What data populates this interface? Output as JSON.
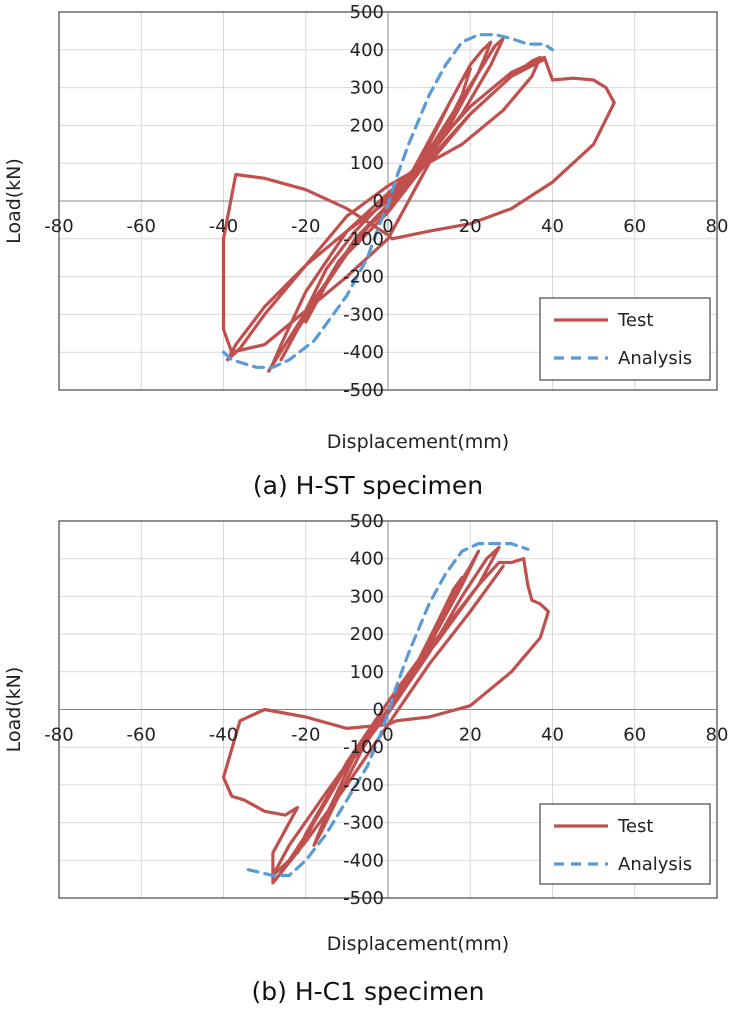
{
  "colors": {
    "test": "#c0504d",
    "analysis": "#5b9bd5",
    "grid": "#d9d9d9",
    "frame": "#222222"
  },
  "chart_data": [
    {
      "type": "line",
      "caption": "(a) H-ST specimen",
      "xlabel": "Displacement(mm)",
      "ylabel": "Load(kN)",
      "xlim": [
        -80,
        80
      ],
      "ylim": [
        -500,
        500
      ],
      "x_ticks": [
        "-80",
        "-60",
        "-40",
        "-20",
        "0",
        "20",
        "40",
        "60",
        "80"
      ],
      "y_ticks": [
        "500",
        "400",
        "300",
        "200",
        "100",
        "0",
        "-100",
        "-200",
        "-300",
        "-400",
        "-500"
      ],
      "legend": [
        "Test",
        "Analysis"
      ],
      "legend_position": "bottom-right",
      "grid": true,
      "series": [
        {
          "name": "Test",
          "x": [
            0,
            5,
            10,
            15,
            18,
            20,
            18,
            12,
            5,
            0,
            -5,
            -10,
            -15,
            -18,
            -20,
            -18,
            -12,
            -5,
            0,
            5,
            10,
            15,
            20,
            23,
            25,
            22,
            15,
            8,
            0,
            -8,
            -15,
            -20,
            -24,
            -26,
            -22,
            -15,
            -8,
            0,
            8,
            15,
            22,
            26,
            28,
            25,
            18,
            10,
            0,
            -10,
            -20,
            -26,
            -28,
            -29,
            -25,
            -18,
            -10,
            0,
            10,
            20,
            30,
            35,
            37,
            35,
            28,
            18,
            8,
            0,
            -10,
            -20,
            -30,
            -36,
            -39,
            -37,
            -30,
            -20,
            -10,
            0,
            10,
            20,
            30,
            36,
            38,
            40,
            45,
            50,
            53,
            55,
            50,
            40,
            30,
            20,
            10,
            1,
            0,
            -10,
            -20,
            -30,
            -37,
            -40,
            -40,
            -38,
            -30,
            -20,
            -10,
            0,
            10,
            20,
            30,
            38
          ],
          "y": [
            0,
            60,
            160,
            260,
            320,
            350,
            280,
            150,
            40,
            -20,
            -70,
            -140,
            -220,
            -280,
            -320,
            -270,
            -160,
            -70,
            -20,
            50,
            150,
            260,
            360,
            400,
            420,
            340,
            200,
            90,
            10,
            -80,
            -180,
            -290,
            -380,
            -420,
            -340,
            -220,
            -100,
            -10,
            100,
            220,
            340,
            410,
            430,
            360,
            230,
            120,
            20,
            -80,
            -240,
            -380,
            -430,
            -450,
            -380,
            -260,
            -140,
            -30,
            110,
            230,
            330,
            370,
            380,
            330,
            240,
            150,
            90,
            40,
            -40,
            -170,
            -300,
            -390,
            -420,
            -380,
            -280,
            -170,
            -80,
            0,
            130,
            250,
            340,
            370,
            380,
            320,
            325,
            320,
            300,
            260,
            150,
            50,
            -20,
            -60,
            -80,
            -100,
            -90,
            -20,
            30,
            60,
            70,
            -100,
            -340,
            -400,
            -380,
            -290,
            -200,
            -100,
            100,
            230,
            330,
            375
          ]
        },
        {
          "name": "Analysis",
          "x": [
            -40,
            -38,
            -32,
            -28,
            -24,
            -18,
            -10,
            -5,
            -2,
            0,
            2,
            5,
            10,
            14,
            18,
            22,
            26,
            30,
            34,
            38,
            40
          ],
          "y": [
            -400,
            -420,
            -440,
            -440,
            -420,
            -370,
            -250,
            -150,
            -60,
            -10,
            60,
            150,
            280,
            360,
            420,
            440,
            440,
            430,
            415,
            415,
            400
          ]
        }
      ]
    },
    {
      "type": "line",
      "caption": "(b) H-C1 specimen",
      "xlabel": "Displacement(mm)",
      "ylabel": "Load(kN)",
      "xlim": [
        -80,
        80
      ],
      "ylim": [
        -500,
        500
      ],
      "x_ticks": [
        "-80",
        "-60",
        "-40",
        "-20",
        "0",
        "20",
        "40",
        "60",
        "80"
      ],
      "y_ticks": [
        "500",
        "400",
        "300",
        "200",
        "100",
        "0",
        "-100",
        "-200",
        "-300",
        "-400",
        "-500"
      ],
      "legend": [
        "Test",
        "Analysis"
      ],
      "legend_position": "bottom-right",
      "grid": true,
      "series": [
        {
          "name": "Test",
          "x": [
            0,
            6,
            12,
            16,
            18,
            15,
            8,
            0,
            -6,
            -12,
            -16,
            -18,
            -15,
            -8,
            0,
            8,
            15,
            20,
            22,
            18,
            10,
            0,
            -10,
            -18,
            -22,
            -20,
            -12,
            0,
            10,
            18,
            24,
            27,
            22,
            12,
            0,
            -10,
            -18,
            -24,
            -28,
            -24,
            -15,
            -5,
            0,
            12,
            22,
            27,
            30,
            33,
            34,
            35,
            37,
            39,
            37,
            30,
            20,
            10,
            2,
            0,
            -10,
            -20,
            -30,
            -36,
            -40,
            -38,
            -35,
            -30,
            -25,
            -22,
            -28,
            -28,
            -20,
            -10,
            0,
            10,
            20,
            28
          ],
          "y": [
            0,
            100,
            230,
            320,
            350,
            280,
            120,
            0,
            -100,
            -230,
            -320,
            -360,
            -280,
            -120,
            0,
            140,
            290,
            380,
            420,
            330,
            170,
            20,
            -140,
            -300,
            -380,
            -330,
            -180,
            -10,
            150,
            300,
            400,
            430,
            330,
            180,
            20,
            -150,
            -300,
            -400,
            -440,
            -360,
            -220,
            -70,
            0,
            190,
            330,
            390,
            390,
            400,
            330,
            290,
            280,
            260,
            190,
            100,
            10,
            -20,
            -30,
            -40,
            -50,
            -20,
            0,
            -30,
            -180,
            -230,
            -240,
            -270,
            -280,
            -260,
            -380,
            -460,
            -350,
            -200,
            -40,
            120,
            260,
            380
          ]
        },
        {
          "name": "Analysis",
          "x": [
            -34,
            -28,
            -24,
            -20,
            -15,
            -10,
            -5,
            -2,
            0,
            2,
            5,
            10,
            14,
            18,
            22,
            26,
            30,
            34
          ],
          "y": [
            -425,
            -440,
            -440,
            -400,
            -330,
            -240,
            -150,
            -70,
            -10,
            60,
            150,
            280,
            360,
            420,
            440,
            440,
            440,
            425
          ]
        }
      ]
    }
  ]
}
